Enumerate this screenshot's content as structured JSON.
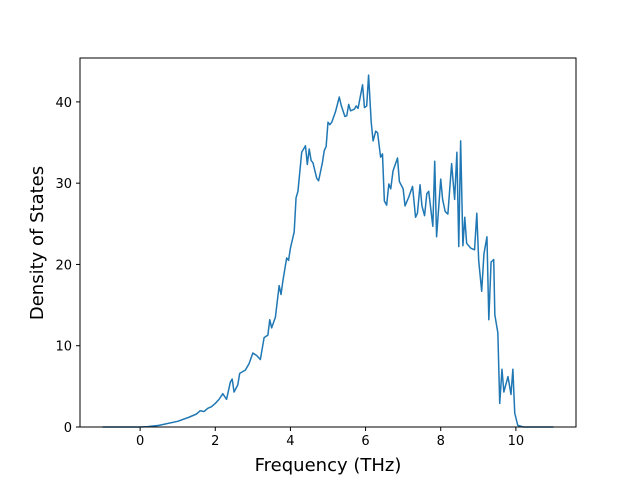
{
  "chart_data": {
    "type": "line",
    "xlabel": "Frequency (THz)",
    "ylabel": "Density of States",
    "x": [
      -1,
      0,
      0.2,
      0.5,
      1.0,
      1.3,
      1.5,
      1.6,
      1.7,
      1.8,
      1.9,
      2.0,
      2.1,
      2.2,
      2.3,
      2.4,
      2.45,
      2.5,
      2.6,
      2.65,
      2.8,
      2.9,
      3.0,
      3.1,
      3.2,
      3.3,
      3.4,
      3.45,
      3.5,
      3.6,
      3.7,
      3.75,
      3.8,
      3.9,
      3.95,
      4.0,
      4.1,
      4.15,
      4.2,
      4.3,
      4.4,
      4.45,
      4.5,
      4.55,
      4.6,
      4.7,
      4.75,
      4.85,
      4.9,
      4.95,
      5.0,
      5.05,
      5.1,
      5.2,
      5.3,
      5.35,
      5.45,
      5.5,
      5.55,
      5.6,
      5.7,
      5.75,
      5.8,
      5.92,
      5.97,
      6.03,
      6.08,
      6.15,
      6.2,
      6.27,
      6.32,
      6.4,
      6.45,
      6.5,
      6.56,
      6.62,
      6.67,
      6.73,
      6.85,
      6.9,
      7.0,
      7.05,
      7.15,
      7.25,
      7.33,
      7.38,
      7.45,
      7.5,
      7.57,
      7.63,
      7.68,
      7.79,
      7.84,
      7.89,
      8.0,
      8.05,
      8.12,
      8.19,
      8.29,
      8.37,
      8.43,
      8.48,
      8.53,
      8.59,
      8.64,
      8.69,
      8.8,
      8.9,
      8.96,
      9.01,
      9.09,
      9.15,
      9.23,
      9.28,
      9.34,
      9.41,
      9.44,
      9.52,
      9.57,
      9.63,
      9.68,
      9.72,
      9.79,
      9.87,
      9.92,
      9.97,
      10.05,
      10.2,
      11
    ],
    "values": [
      0,
      0,
      0.05,
      0.2,
      0.7,
      1.2,
      1.6,
      2.0,
      1.9,
      2.3,
      2.5,
      2.9,
      3.4,
      4.1,
      3.4,
      5.5,
      5.9,
      4.3,
      5.2,
      6.6,
      7.0,
      7.8,
      9.1,
      8.8,
      8.3,
      11,
      11.3,
      13.2,
      12.2,
      13.5,
      17.4,
      16.3,
      18,
      20.8,
      20.5,
      22,
      24,
      28.2,
      29,
      33.8,
      34.6,
      32.3,
      34.2,
      32.8,
      32.5,
      30.6,
      30.3,
      32.5,
      34,
      34.5,
      37.5,
      37.2,
      37.5,
      38.8,
      40.6,
      39.6,
      38.2,
      38.3,
      39.7,
      38.9,
      39.1,
      39.5,
      39.2,
      42.1,
      39.3,
      39.5,
      43.3,
      37.5,
      35.2,
      36.4,
      36.2,
      33.2,
      33.6,
      27.8,
      27.3,
      29.9,
      29.3,
      31.5,
      33.1,
      30.2,
      29.3,
      27.2,
      28.3,
      29.6,
      25.8,
      26.3,
      29.8,
      27.2,
      26,
      28.7,
      29,
      24.7,
      32.7,
      23.4,
      30.5,
      28,
      26.5,
      26.2,
      32.4,
      28,
      33.8,
      22.2,
      35.2,
      22.3,
      25.8,
      22.6,
      22,
      21.8,
      26.3,
      20.5,
      16.7,
      21.3,
      23.4,
      13.2,
      20.3,
      20.6,
      13.8,
      11.6,
      2.9,
      7.1,
      4.3,
      5,
      6.2,
      4,
      7.1,
      1.7,
      0.2,
      0,
      0
    ],
    "color": "#1f77b4",
    "xlim": [
      -1.6,
      11.6
    ],
    "xticks": [
      0,
      2,
      4,
      6,
      8,
      10
    ],
    "ylim": [
      0,
      45.4
    ],
    "yticks": [
      0,
      10,
      20,
      30,
      40
    ]
  }
}
